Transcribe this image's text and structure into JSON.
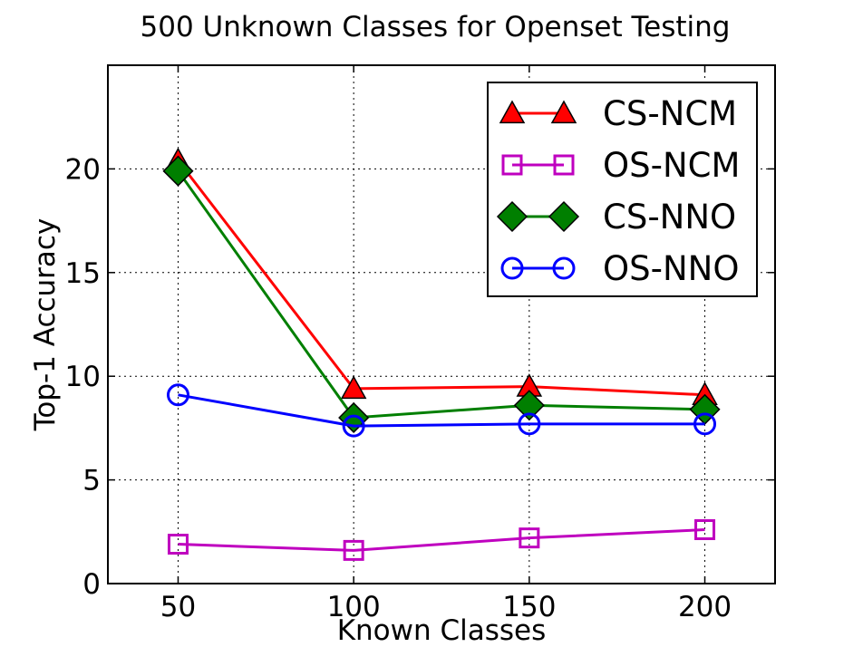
{
  "chart_data": {
    "type": "line",
    "title": "500 Unknown Classes for Openset Testing",
    "xlabel": "Known Classes",
    "ylabel": "Top-1 Accuracy",
    "x": [
      50,
      100,
      150,
      200
    ],
    "xlim": [
      30,
      220
    ],
    "ylim": [
      0,
      25
    ],
    "xticks": [
      50,
      100,
      150,
      200
    ],
    "yticks": [
      0,
      5,
      10,
      15,
      20
    ],
    "xtick_labels": [
      "50",
      "100",
      "150",
      "200"
    ],
    "ytick_labels": [
      "0",
      "5",
      "10",
      "15",
      "20"
    ],
    "grid": true,
    "legend_position": "top-right",
    "series": [
      {
        "name": "CS-NCM",
        "values": [
          20.4,
          9.4,
          9.5,
          9.1
        ],
        "color": "#ff0000",
        "marker": "triangle",
        "filled": true
      },
      {
        "name": "OS-NCM",
        "values": [
          1.9,
          1.6,
          2.2,
          2.6
        ],
        "color": "#bf00bf",
        "marker": "square",
        "filled": false
      },
      {
        "name": "CS-NNO",
        "values": [
          19.9,
          8.0,
          8.6,
          8.4
        ],
        "color": "#007f00",
        "marker": "diamond",
        "filled": true
      },
      {
        "name": "OS-NNO",
        "values": [
          9.1,
          7.6,
          7.7,
          7.7
        ],
        "color": "#0000ff",
        "marker": "circle",
        "filled": false
      }
    ]
  }
}
